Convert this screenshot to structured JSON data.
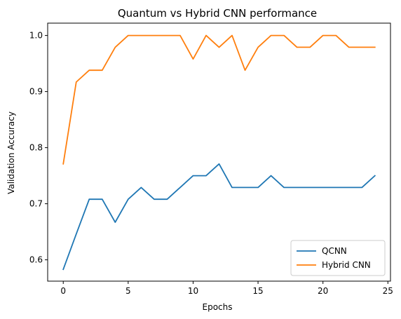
{
  "chart_data": {
    "type": "line",
    "title": "Quantum vs Hybrid CNN performance",
    "xlabel": "Epochs",
    "ylabel": "Validation Accuracy",
    "xlim": [
      -1.2,
      25.2
    ],
    "ylim": [
      0.562,
      1.022
    ],
    "x_ticks": [
      0,
      5,
      10,
      15,
      20,
      25
    ],
    "y_ticks": [
      0.6,
      0.7,
      0.8,
      0.9,
      1.0
    ],
    "x_tick_labels": [
      "0",
      "5",
      "10",
      "15",
      "20",
      "25"
    ],
    "y_tick_labels": [
      "0.6",
      "0.7",
      "0.8",
      "0.9",
      "1.0"
    ],
    "grid": false,
    "legend_position": "lower-right",
    "x": [
      0,
      1,
      2,
      3,
      4,
      5,
      6,
      7,
      8,
      9,
      10,
      11,
      12,
      13,
      14,
      15,
      16,
      17,
      18,
      19,
      20,
      21,
      22,
      23,
      24
    ],
    "series": [
      {
        "name": "QCNN",
        "color": "#1f77b4",
        "values": [
          0.583,
          0.646,
          0.708,
          0.708,
          0.667,
          0.708,
          0.729,
          0.708,
          0.708,
          0.729,
          0.75,
          0.75,
          0.771,
          0.729,
          0.729,
          0.729,
          0.75,
          0.729,
          0.729,
          0.729,
          0.729,
          0.729,
          0.729,
          0.729,
          0.75
        ]
      },
      {
        "name": "Hybrid CNN",
        "color": "#ff7f0e",
        "values": [
          0.771,
          0.917,
          0.938,
          0.938,
          0.979,
          1.0,
          1.0,
          1.0,
          1.0,
          1.0,
          0.958,
          1.0,
          0.979,
          1.0,
          0.938,
          0.979,
          1.0,
          1.0,
          0.979,
          0.979,
          1.0,
          1.0,
          0.979,
          0.979,
          0.979
        ]
      }
    ]
  }
}
